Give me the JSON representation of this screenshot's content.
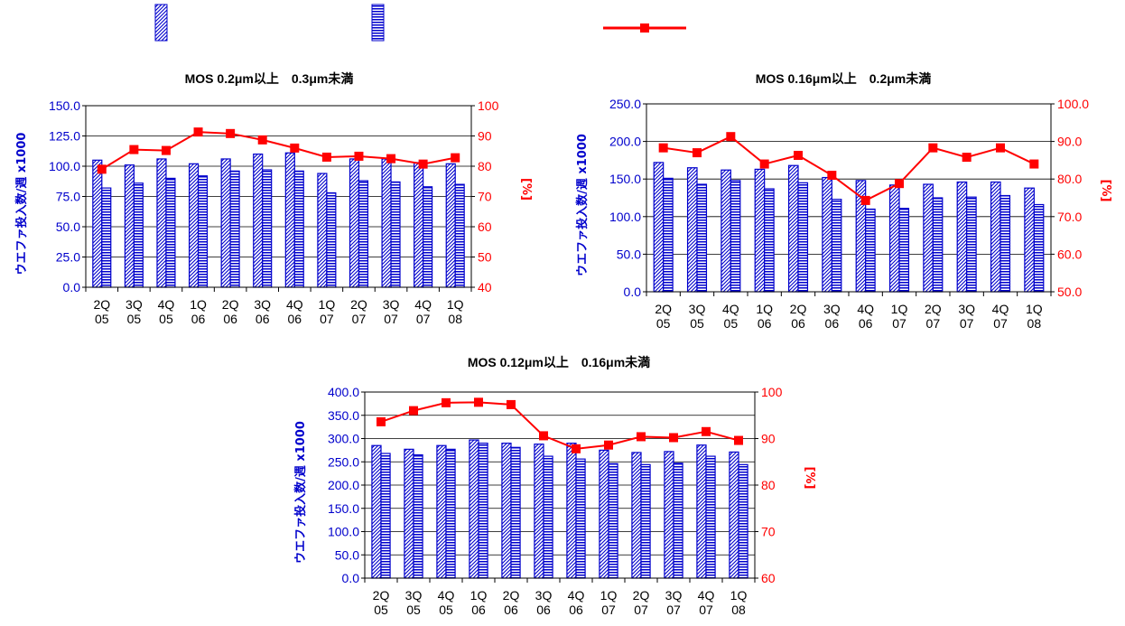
{
  "colors": {
    "bar": "#0000cc",
    "line": "#ff0000",
    "frame": "#000000"
  },
  "legend": {
    "items": [
      {
        "key": "diag",
        "label": ""
      },
      {
        "key": "horiz",
        "label": ""
      },
      {
        "key": "line",
        "label": ""
      }
    ]
  },
  "chart_data": [
    {
      "type": "bar",
      "title": "MOS 0.2μm以上　0.3μm未満",
      "ylabel": "ウエファ投入数/週 x1000",
      "y2label": "[%]",
      "categories": [
        [
          "2Q",
          "05"
        ],
        [
          "3Q",
          "05"
        ],
        [
          "4Q",
          "05"
        ],
        [
          "1Q",
          "06"
        ],
        [
          "2Q",
          "06"
        ],
        [
          "3Q",
          "06"
        ],
        [
          "4Q",
          "06"
        ],
        [
          "1Q",
          "07"
        ],
        [
          "2Q",
          "07"
        ],
        [
          "3Q",
          "07"
        ],
        [
          "4Q",
          "07"
        ],
        [
          "1Q",
          "08"
        ]
      ],
      "ylim": [
        0,
        150
      ],
      "yticks": [
        "0.0",
        "25.0",
        "50.0",
        "75.0",
        "100.0",
        "125.0",
        "150.0"
      ],
      "y2lim": [
        40,
        100
      ],
      "y2ticks": [
        "40",
        "50",
        "60",
        "70",
        "80",
        "90",
        "100"
      ],
      "grid": true,
      "series": [
        {
          "type": "bar",
          "pattern": "diag",
          "values": [
            105,
            101,
            106,
            102,
            106,
            110,
            111,
            94,
            106,
            106,
            103,
            102
          ]
        },
        {
          "type": "bar",
          "pattern": "horiz",
          "values": [
            82,
            86,
            90,
            92,
            96,
            97,
            96,
            78,
            88,
            87,
            83,
            85
          ]
        },
        {
          "type": "line",
          "axis": "right",
          "values": [
            79,
            85.5,
            85.2,
            91.3,
            90.8,
            88.7,
            86,
            83,
            83.3,
            82.5,
            80.7,
            82.8
          ]
        }
      ]
    },
    {
      "type": "bar",
      "title": "MOS 0.16μm以上　0.2μm未満",
      "ylabel": "ウエファ投入数/週 x1000",
      "y2label": "[%]",
      "categories": [
        [
          "2Q",
          "05"
        ],
        [
          "3Q",
          "05"
        ],
        [
          "4Q",
          "05"
        ],
        [
          "1Q",
          "06"
        ],
        [
          "2Q",
          "06"
        ],
        [
          "3Q",
          "06"
        ],
        [
          "4Q",
          "06"
        ],
        [
          "1Q",
          "07"
        ],
        [
          "2Q",
          "07"
        ],
        [
          "3Q",
          "07"
        ],
        [
          "4Q",
          "07"
        ],
        [
          "1Q",
          "08"
        ]
      ],
      "ylim": [
        0,
        250
      ],
      "yticks": [
        "0.0",
        "50.0",
        "100.0",
        "150.0",
        "200.0",
        "250.0"
      ],
      "y2lim": [
        50,
        100
      ],
      "y2ticks": [
        "50.0",
        "60.0",
        "70.0",
        "80.0",
        "90.0",
        "100.0"
      ],
      "grid": true,
      "series": [
        {
          "type": "bar",
          "pattern": "diag",
          "values": [
            172,
            165,
            162,
            163,
            168,
            152,
            148,
            142,
            143,
            146,
            146,
            138
          ]
        },
        {
          "type": "bar",
          "pattern": "horiz",
          "values": [
            151,
            143,
            148,
            137,
            145,
            123,
            110,
            111,
            125,
            126,
            128,
            116
          ]
        },
        {
          "type": "line",
          "axis": "right",
          "values": [
            88.3,
            87,
            91.3,
            84,
            86.3,
            81,
            74.3,
            78.8,
            88.3,
            85.8,
            88.3,
            84
          ]
        }
      ]
    },
    {
      "type": "bar",
      "title": "MOS 0.12μm以上　0.16μm未満",
      "ylabel": "ウエファ投入数/週 x1000",
      "y2label": "[%]",
      "categories": [
        [
          "2Q",
          "05"
        ],
        [
          "3Q",
          "05"
        ],
        [
          "4Q",
          "05"
        ],
        [
          "1Q",
          "06"
        ],
        [
          "2Q",
          "06"
        ],
        [
          "3Q",
          "06"
        ],
        [
          "4Q",
          "06"
        ],
        [
          "1Q",
          "07"
        ],
        [
          "2Q",
          "07"
        ],
        [
          "3Q",
          "07"
        ],
        [
          "4Q",
          "07"
        ],
        [
          "1Q",
          "08"
        ]
      ],
      "ylim": [
        0,
        400
      ],
      "yticks": [
        "0.0",
        "50.0",
        "100.0",
        "150.0",
        "200.0",
        "250.0",
        "300.0",
        "350.0",
        "400.0"
      ],
      "y2lim": [
        60,
        100
      ],
      "y2ticks": [
        "60",
        "70",
        "80",
        "90",
        "100"
      ],
      "grid": true,
      "series": [
        {
          "type": "bar",
          "pattern": "diag",
          "values": [
            285,
            277,
            285,
            297,
            290,
            288,
            290,
            275,
            270,
            272,
            286,
            271
          ]
        },
        {
          "type": "bar",
          "pattern": "horiz",
          "values": [
            268,
            265,
            277,
            290,
            281,
            262,
            256,
            246,
            244,
            247,
            262,
            244
          ]
        },
        {
          "type": "line",
          "axis": "right",
          "values": [
            93.6,
            96,
            97.7,
            97.8,
            97.3,
            90.6,
            87.8,
            88.6,
            90.4,
            90.2,
            91.5,
            89.6
          ]
        }
      ]
    }
  ]
}
